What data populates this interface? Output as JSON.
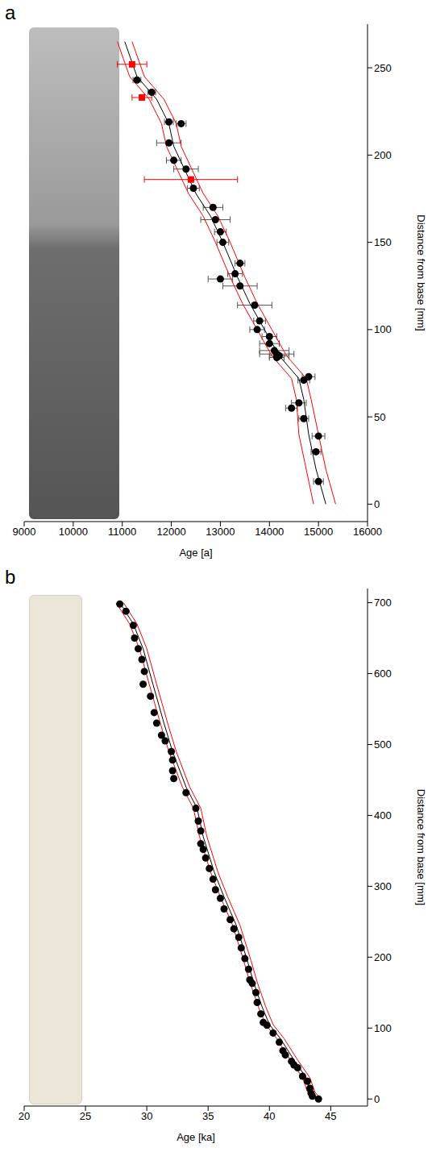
{
  "chart_data": [
    {
      "type": "scatter",
      "title": "a",
      "x_label": "Age [a]",
      "y_label": "Distance from base [mm]",
      "xlim": [
        9000,
        16000
      ],
      "xticks": [
        9000,
        10000,
        11000,
        12000,
        13000,
        14000,
        15000,
        16000
      ],
      "ylim": [
        -10,
        275
      ],
      "yticks": [
        0,
        50,
        100,
        150,
        200,
        250
      ],
      "series": [
        {
          "type": "line",
          "color": "#ff0000",
          "line_style": "solid",
          "x": [
            10900,
            11150,
            11550,
            11800,
            11900,
            12150,
            12350,
            12650,
            12900,
            13200,
            13450,
            13750,
            14050,
            14450,
            14550,
            14600,
            14750,
            14900
          ],
          "y": [
            265,
            245,
            232,
            218,
            205,
            190,
            178,
            165,
            150,
            130,
            115,
            100,
            85,
            72,
            60,
            40,
            20,
            0
          ]
        },
        {
          "type": "line",
          "color": "#ff0000",
          "line_style": "solid",
          "x": [
            11200,
            11450,
            11850,
            12100,
            12200,
            12450,
            12650,
            12950,
            13200,
            13500,
            13750,
            14050,
            14350,
            14750,
            14850,
            15000,
            15150,
            15350
          ],
          "y": [
            265,
            245,
            232,
            218,
            205,
            190,
            178,
            165,
            150,
            130,
            115,
            100,
            85,
            72,
            60,
            40,
            20,
            0
          ]
        },
        {
          "type": "line",
          "color": "#000000",
          "line_style": "solid",
          "x": [
            11050,
            11300,
            11700,
            11950,
            12050,
            12300,
            12500,
            12800,
            13050,
            13350,
            13600,
            13900,
            14200,
            14600,
            14700,
            14800,
            14950,
            15150
          ],
          "y": [
            265,
            245,
            232,
            218,
            205,
            190,
            178,
            165,
            150,
            130,
            115,
            100,
            85,
            72,
            60,
            40,
            20,
            0
          ]
        },
        {
          "type": "scatter",
          "color": "#000000",
          "marker": "circle",
          "x": [
            11300,
            11600,
            11950,
            12200,
            11950,
            12050,
            12300,
            12450,
            12850,
            12900,
            13000,
            13050,
            13400,
            13300,
            13000,
            13400,
            13700,
            13800,
            13750,
            14000,
            14000,
            14100,
            14150,
            14200,
            14150,
            14800,
            14700,
            14600,
            14450,
            14700,
            15000,
            14950,
            15000
          ],
          "y": [
            243,
            236,
            219,
            218,
            207,
            197,
            192,
            181,
            170,
            163,
            156,
            150,
            138,
            132,
            129,
            125,
            114,
            105,
            100,
            96,
            92,
            88,
            86,
            85,
            84,
            73,
            71,
            58,
            55,
            49,
            39,
            30,
            13
          ],
          "x_error": [
            80,
            80,
            90,
            100,
            250,
            150,
            250,
            120,
            200,
            300,
            120,
            120,
            100,
            150,
            250,
            350,
            350,
            120,
            150,
            150,
            200,
            300,
            350,
            200,
            150,
            130,
            120,
            150,
            120,
            100,
            130,
            100,
            100
          ]
        },
        {
          "type": "scatter",
          "color": "#ff0000",
          "marker": "square",
          "x": [
            11200,
            11400,
            12400
          ],
          "y": [
            252,
            233,
            186
          ],
          "x_error": [
            300,
            200,
            950
          ]
        }
      ]
    },
    {
      "type": "scatter",
      "title": "b",
      "x_label": "Age [ka]",
      "y_label": "Distance from base [mm]",
      "xlim": [
        20,
        48
      ],
      "xticks": [
        20,
        25,
        30,
        35,
        40,
        45
      ],
      "ylim": [
        -10,
        720
      ],
      "yticks": [
        0,
        100,
        200,
        300,
        400,
        500,
        600,
        700
      ],
      "series": [
        {
          "type": "line",
          "color": "#ff0000",
          "line_style": "solid",
          "x": [
            27.5,
            28.6,
            29.4,
            30.2,
            31.1,
            31.8,
            32.9,
            33.8,
            34.3,
            35.2,
            36.0,
            37.0,
            37.9,
            38.4,
            39.1,
            39.7,
            40.6,
            41.7,
            42.7,
            43.1,
            43.6
          ],
          "y": [
            700,
            670,
            635,
            585,
            530,
            490,
            440,
            410,
            370,
            320,
            285,
            245,
            195,
            165,
            130,
            105,
            85,
            55,
            30,
            10,
            0
          ]
        },
        {
          "type": "line",
          "color": "#ff0000",
          "line_style": "solid",
          "x": [
            28.1,
            29.2,
            30.0,
            30.8,
            31.7,
            32.4,
            33.5,
            34.4,
            34.9,
            35.8,
            36.6,
            37.6,
            38.5,
            39.0,
            39.7,
            40.3,
            41.2,
            42.3,
            43.3,
            43.7,
            44.2
          ],
          "y": [
            700,
            670,
            635,
            585,
            530,
            490,
            440,
            410,
            370,
            320,
            285,
            245,
            195,
            165,
            130,
            105,
            85,
            55,
            30,
            10,
            0
          ]
        },
        {
          "type": "line",
          "color": "#000000",
          "line_style": "solid",
          "x": [
            27.8,
            28.9,
            29.7,
            30.5,
            31.4,
            32.1,
            33.2,
            34.1,
            34.6,
            35.5,
            36.3,
            37.3,
            38.2,
            38.7,
            39.4,
            40.0,
            40.9,
            42.0,
            43.0,
            43.4,
            43.9
          ],
          "y": [
            700,
            670,
            635,
            585,
            530,
            490,
            440,
            410,
            370,
            320,
            285,
            245,
            195,
            165,
            130,
            105,
            85,
            55,
            30,
            10,
            0
          ]
        },
        {
          "type": "scatter",
          "color": "#000000",
          "marker": "circle",
          "x": [
            27.8,
            28.3,
            28.9,
            29.0,
            29.3,
            29.6,
            29.8,
            29.7,
            30.3,
            30.6,
            30.8,
            31.2,
            31.5,
            32.0,
            32.1,
            32.1,
            32.2,
            33.2,
            34.0,
            34.2,
            34.4,
            34.4,
            34.6,
            34.8,
            35.1,
            35.4,
            35.6,
            36.0,
            36.3,
            36.8,
            37.1,
            37.5,
            37.7,
            38.0,
            38.3,
            38.4,
            38.6,
            38.9,
            39.0,
            39.3,
            39.5,
            39.8,
            40.3,
            40.8,
            41.1,
            41.3,
            41.8,
            42.0,
            42.3,
            42.7,
            43.1,
            43.3,
            43.4,
            43.5,
            44.0
          ],
          "y": [
            698,
            688,
            668,
            650,
            635,
            620,
            603,
            585,
            568,
            545,
            530,
            513,
            505,
            490,
            478,
            463,
            452,
            432,
            410,
            392,
            378,
            360,
            352,
            340,
            325,
            310,
            295,
            283,
            268,
            253,
            240,
            228,
            213,
            198,
            183,
            168,
            163,
            150,
            136,
            120,
            108,
            104,
            93,
            80,
            68,
            62,
            53,
            48,
            44,
            32,
            25,
            15,
            8,
            4,
            0
          ]
        }
      ]
    }
  ]
}
